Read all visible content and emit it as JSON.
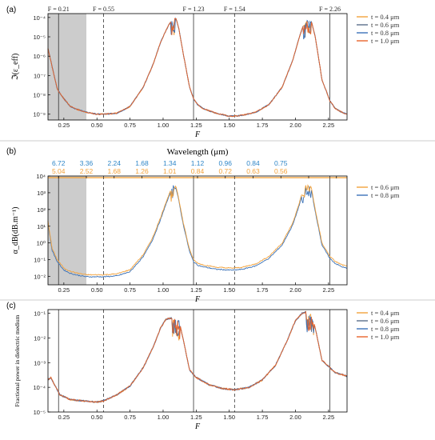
{
  "colors": {
    "t04": "#F2A23C",
    "t06": "#5A6E8C",
    "t08": "#3B72B8",
    "t10": "#E8642C",
    "wl_blue": "#2E86C8",
    "wl_orange": "#F2A23C",
    "shade": "#CCCCCC"
  },
  "chart_data": [
    {
      "panel_label": "(a)",
      "type": "line",
      "ylabel": "ℑ(ε_eff)",
      "xlabel": "F",
      "xlim": [
        0.13,
        2.39
      ],
      "ylim_log10": [
        -9.3,
        -3.8
      ],
      "y_scale": "log",
      "x_ticks": [
        "0.25",
        "0.50",
        "0.75",
        "1.00",
        "1.25",
        "1.50",
        "1.75",
        "2.00",
        "2.25"
      ],
      "y_ticks": [
        {
          "exp": -9,
          "label": "10⁻⁹"
        },
        {
          "exp": -8,
          "label": "10⁻⁸"
        },
        {
          "exp": -7,
          "label": "10⁻⁷"
        },
        {
          "exp": -6,
          "label": "10⁻⁶"
        },
        {
          "exp": -5,
          "label": "10⁻⁵"
        },
        {
          "exp": -4,
          "label": "10⁻⁴"
        }
      ],
      "shaded_region": [
        0.13,
        0.42
      ],
      "vlines": [
        {
          "x": 0.21,
          "style": "solid",
          "label": "F = 0.21"
        },
        {
          "x": 0.55,
          "style": "dashed",
          "label": "F = 0.55"
        },
        {
          "x": 1.23,
          "style": "solid",
          "label": "F = 1.23"
        },
        {
          "x": 1.54,
          "style": "dashed",
          "label": "F = 1.54"
        },
        {
          "x": 2.26,
          "style": "solid",
          "label": "F = 2.26"
        }
      ],
      "legend": [
        "t = 0.4 μm",
        "t = 0.6 μm",
        "t = 0.8 μm",
        "t = 1.0 μm"
      ],
      "legend_color_keys": [
        "t04",
        "t06",
        "t08",
        "t10"
      ],
      "legend_position": "right",
      "base_curve": {
        "x": [
          0.13,
          0.16,
          0.2,
          0.25,
          0.3,
          0.35,
          0.42,
          0.5,
          0.55,
          0.65,
          0.75,
          0.85,
          0.92,
          0.98,
          1.02,
          1.05,
          1.07,
          1.08,
          1.1,
          1.12,
          1.15,
          1.2,
          1.23,
          1.26,
          1.3,
          1.4,
          1.5,
          1.54,
          1.6,
          1.7,
          1.8,
          1.9,
          1.98,
          2.03,
          2.06,
          2.08,
          2.1,
          2.12,
          2.15,
          2.2,
          2.26,
          2.3,
          2.35,
          2.39
        ],
        "log10y": [
          -5.6,
          -6.5,
          -7.7,
          -8.2,
          -8.6,
          -8.75,
          -8.9,
          -9.0,
          -9.0,
          -8.95,
          -8.6,
          -7.6,
          -6.5,
          -5.3,
          -4.7,
          -4.3,
          -4.1,
          -4.0,
          -4.1,
          -4.6,
          -5.8,
          -7.6,
          -8.2,
          -8.5,
          -8.7,
          -8.95,
          -9.1,
          -9.1,
          -9.05,
          -8.9,
          -8.5,
          -7.6,
          -6.2,
          -5.0,
          -4.4,
          -4.15,
          -4.0,
          -4.2,
          -5.0,
          -7.2,
          -8.3,
          -8.7,
          -8.9,
          -9.0
        ]
      },
      "spike_segments": [
        [
          1.06,
          1.09
        ],
        [
          2.06,
          2.12
        ]
      ]
    },
    {
      "panel_label": "(b)",
      "type": "line",
      "ylabel": "α_dB(dB.m⁻¹)",
      "xlabel": "F",
      "top_axis_label": "Wavelength (μm)",
      "xlim": [
        0.13,
        2.39
      ],
      "ylim_log10": [
        -2.5,
        4.0
      ],
      "y_scale": "log",
      "x_ticks": [
        "0.25",
        "0.50",
        "0.75",
        "1.00",
        "1.25",
        "1.50",
        "1.75",
        "2.00",
        "2.25"
      ],
      "y_ticks": [
        {
          "exp": -2,
          "label": "10⁻²"
        },
        {
          "exp": -1,
          "label": "10⁻¹"
        },
        {
          "exp": 0,
          "label": "10⁰"
        },
        {
          "exp": 1,
          "label": "10¹"
        },
        {
          "exp": 2,
          "label": "10²"
        },
        {
          "exp": 3,
          "label": "10³"
        },
        {
          "exp": 4,
          "label": "10⁴"
        }
      ],
      "shaded_region": [
        0.13,
        0.42
      ],
      "vlines": [
        {
          "x": 0.21,
          "style": "solid"
        },
        {
          "x": 0.55,
          "style": "dashed"
        },
        {
          "x": 1.23,
          "style": "solid"
        },
        {
          "x": 1.54,
          "style": "dashed"
        },
        {
          "x": 2.26,
          "style": "solid"
        }
      ],
      "wavelength_ticks_x": [
        0.21,
        0.42,
        0.63,
        0.84,
        1.05,
        1.26,
        1.47,
        1.68,
        1.89,
        2.1,
        2.31
      ],
      "wavelength_blue": [
        "6.72",
        "3.36",
        "2.24",
        "1.68",
        "1.34",
        "1.12",
        "0.96",
        "0.84",
        "0.75"
      ],
      "wavelength_blue_x": [
        0.21,
        0.42,
        0.63,
        0.84,
        1.05,
        1.26,
        1.47,
        1.68,
        1.89
      ],
      "wavelength_orange": [
        "5.04",
        "2.52",
        "1.68",
        "1.26",
        "1.01",
        "0.84",
        "0.72",
        "0.63",
        "0.56"
      ],
      "wavelength_orange_x": [
        0.21,
        0.42,
        0.63,
        0.84,
        1.05,
        1.26,
        1.47,
        1.68,
        1.89
      ],
      "legend": [
        "t = 0.6 μm",
        "t = 0.8 μm"
      ],
      "legend_color_keys": [
        "t04",
        "t08"
      ],
      "legend_position": "right",
      "base_curve": {
        "x": [
          0.13,
          0.16,
          0.2,
          0.25,
          0.3,
          0.35,
          0.42,
          0.5,
          0.55,
          0.65,
          0.75,
          0.85,
          0.92,
          0.98,
          1.02,
          1.05,
          1.07,
          1.08,
          1.1,
          1.12,
          1.15,
          1.2,
          1.23,
          1.26,
          1.3,
          1.4,
          1.5,
          1.54,
          1.6,
          1.7,
          1.8,
          1.9,
          1.98,
          2.03,
          2.06,
          2.08,
          2.1,
          2.12,
          2.15,
          2.2,
          2.26,
          2.3,
          2.35,
          2.39
        ],
        "log10y": [
          1.3,
          -0.3,
          -1.0,
          -1.5,
          -1.7,
          -1.8,
          -1.9,
          -1.9,
          -1.9,
          -1.85,
          -1.6,
          -0.7,
          0.3,
          1.5,
          2.4,
          3.0,
          3.5,
          3.6,
          3.3,
          2.6,
          1.3,
          -0.4,
          -1.0,
          -1.2,
          -1.3,
          -1.45,
          -1.5,
          -1.5,
          -1.45,
          -1.25,
          -0.8,
          0.0,
          1.2,
          2.4,
          3.3,
          3.6,
          3.7,
          3.3,
          2.0,
          0.0,
          -0.8,
          -1.1,
          -1.3,
          -1.4
        ]
      },
      "series_offsets_log10": [
        0.0,
        -0.12
      ],
      "spike_segments": [
        [
          1.06,
          1.09
        ],
        [
          2.05,
          2.12
        ]
      ]
    },
    {
      "panel_label": "(c)",
      "type": "line",
      "ylabel": "Fractional power in dielectric medium",
      "xlabel": "F",
      "xlim": [
        0.13,
        2.39
      ],
      "ylim_log10": [
        -5.0,
        -0.85
      ],
      "y_scale": "log",
      "x_ticks": [
        "0.25",
        "0.50",
        "0.75",
        "1.00",
        "1.25",
        "1.50",
        "1.75",
        "2.00",
        "2.25"
      ],
      "y_ticks": [
        {
          "exp": -5,
          "label": "10⁻⁵"
        },
        {
          "exp": -4,
          "label": "10⁻⁴"
        },
        {
          "exp": -3,
          "label": "10⁻³"
        },
        {
          "exp": -2,
          "label": "10⁻²"
        },
        {
          "exp": -1,
          "label": "10⁻¹"
        }
      ],
      "vlines": [
        {
          "x": 0.21,
          "style": "solid"
        },
        {
          "x": 0.55,
          "style": "dashed"
        },
        {
          "x": 1.23,
          "style": "solid"
        },
        {
          "x": 1.54,
          "style": "dashed"
        },
        {
          "x": 2.26,
          "style": "solid"
        }
      ],
      "legend": [
        "t = 0.4 μm",
        "t = 0.6 μm",
        "t = 0.8 μm",
        "t = 1.0 μm"
      ],
      "legend_color_keys": [
        "t04",
        "t06",
        "t08",
        "t10"
      ],
      "legend_position": "right",
      "base_curve": {
        "x": [
          0.13,
          0.15,
          0.18,
          0.22,
          0.3,
          0.4,
          0.5,
          0.55,
          0.65,
          0.75,
          0.85,
          0.93,
          0.98,
          1.02,
          1.05,
          1.08,
          1.1,
          1.12,
          1.15,
          1.2,
          1.25,
          1.35,
          1.45,
          1.54,
          1.65,
          1.75,
          1.85,
          1.93,
          2.0,
          2.05,
          2.08,
          2.1,
          2.12,
          2.15,
          2.2,
          2.3,
          2.39
        ],
        "log10y": [
          -3.7,
          -3.6,
          -3.9,
          -4.3,
          -4.5,
          -4.55,
          -4.6,
          -4.55,
          -4.3,
          -3.95,
          -3.2,
          -2.3,
          -1.6,
          -1.25,
          -1.2,
          -1.2,
          -1.2,
          -1.3,
          -2.0,
          -3.3,
          -3.6,
          -3.9,
          -4.05,
          -4.1,
          -4.0,
          -3.7,
          -3.1,
          -2.2,
          -1.3,
          -1.0,
          -0.95,
          -0.95,
          -1.0,
          -1.6,
          -2.9,
          -3.4,
          -3.55
        ]
      },
      "spike_segments": [
        [
          1.07,
          1.13
        ],
        [
          2.08,
          2.14
        ]
      ]
    }
  ]
}
